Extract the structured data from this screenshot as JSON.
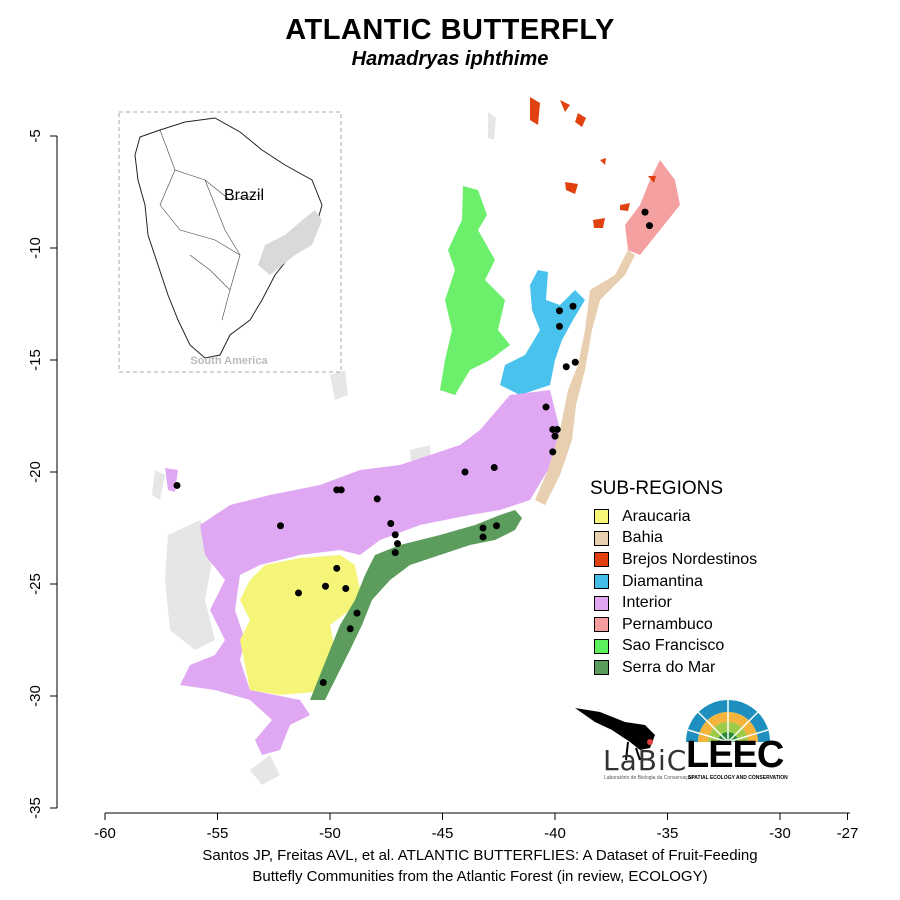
{
  "title": "ATLANTIC BUTTERFLY",
  "subtitle": "Hamadryas iphthime",
  "axes": {
    "x_ticks": [
      "-60",
      "-55",
      "-50",
      "-45",
      "-40",
      "-35",
      "-30",
      "-27"
    ],
    "y_ticks": [
      "-5",
      "-10",
      "-15",
      "-20",
      "-25",
      "-30",
      "-35"
    ]
  },
  "inset": {
    "country_label": "Brazil",
    "region_label": "South America"
  },
  "legend": {
    "title": "SUB-REGIONS",
    "items": [
      {
        "label": "Araucaria",
        "color": "#f5f578"
      },
      {
        "label": "Bahia",
        "color": "#e8cfb0"
      },
      {
        "label": "Brejos Nordestinos",
        "color": "#e0410f"
      },
      {
        "label": "Diamantina",
        "color": "#45bde8"
      },
      {
        "label": "Interior",
        "color": "#dfa5f0"
      },
      {
        "label": "Pernambuco",
        "color": "#f59c9c"
      },
      {
        "label": "Sao Francisco",
        "color": "#5df05d"
      },
      {
        "label": "Serra do Mar",
        "color": "#5a9a5a"
      }
    ]
  },
  "occurrences": [
    {
      "lon": -56.8,
      "lat": -20.6
    },
    {
      "lon": -52.2,
      "lat": -22.4
    },
    {
      "lon": -49.7,
      "lat": -20.8
    },
    {
      "lon": -49.5,
      "lat": -20.8
    },
    {
      "lon": -47.9,
      "lat": -21.2
    },
    {
      "lon": -44.0,
      "lat": -20.0
    },
    {
      "lon": -42.7,
      "lat": -19.8
    },
    {
      "lon": -47.3,
      "lat": -22.3
    },
    {
      "lon": -47.1,
      "lat": -22.8
    },
    {
      "lon": -47.0,
      "lat": -23.2
    },
    {
      "lon": -47.1,
      "lat": -23.6
    },
    {
      "lon": -43.2,
      "lat": -22.5
    },
    {
      "lon": -43.2,
      "lat": -22.9
    },
    {
      "lon": -42.6,
      "lat": -22.4
    },
    {
      "lon": -49.7,
      "lat": -24.3
    },
    {
      "lon": -51.4,
      "lat": -25.4
    },
    {
      "lon": -50.2,
      "lat": -25.1
    },
    {
      "lon": -49.3,
      "lat": -25.2
    },
    {
      "lon": -48.8,
      "lat": -26.3
    },
    {
      "lon": -49.1,
      "lat": -27.0
    },
    {
      "lon": -50.3,
      "lat": -29.4
    },
    {
      "lon": -39.8,
      "lat": -12.8
    },
    {
      "lon": -39.2,
      "lat": -12.6
    },
    {
      "lon": -39.8,
      "lat": -13.5
    },
    {
      "lon": -39.5,
      "lat": -15.3
    },
    {
      "lon": -39.1,
      "lat": -15.1
    },
    {
      "lon": -40.4,
      "lat": -17.1
    },
    {
      "lon": -40.1,
      "lat": -18.1
    },
    {
      "lon": -39.9,
      "lat": -18.1
    },
    {
      "lon": -40.0,
      "lat": -18.4
    },
    {
      "lon": -40.1,
      "lat": -19.1
    },
    {
      "lon": -36.0,
      "lat": -8.4
    },
    {
      "lon": -35.8,
      "lat": -9.0
    }
  ],
  "caption": {
    "line1": "Santos JP, Freitas AVL, et al. ATLANTIC BUTTERFLIES: A Dataset of Fruit-Feeding",
    "line2": "Buttefly Communities from the Atlantic Forest (in review, ECOLOGY)"
  },
  "logos": {
    "labic": "LaBiC",
    "labic_sub": "Laboratório de Biologia da Conservação",
    "leec": "LEEC",
    "leec_sub": "SPATIAL ECOLOGY AND CONSERVATION"
  }
}
